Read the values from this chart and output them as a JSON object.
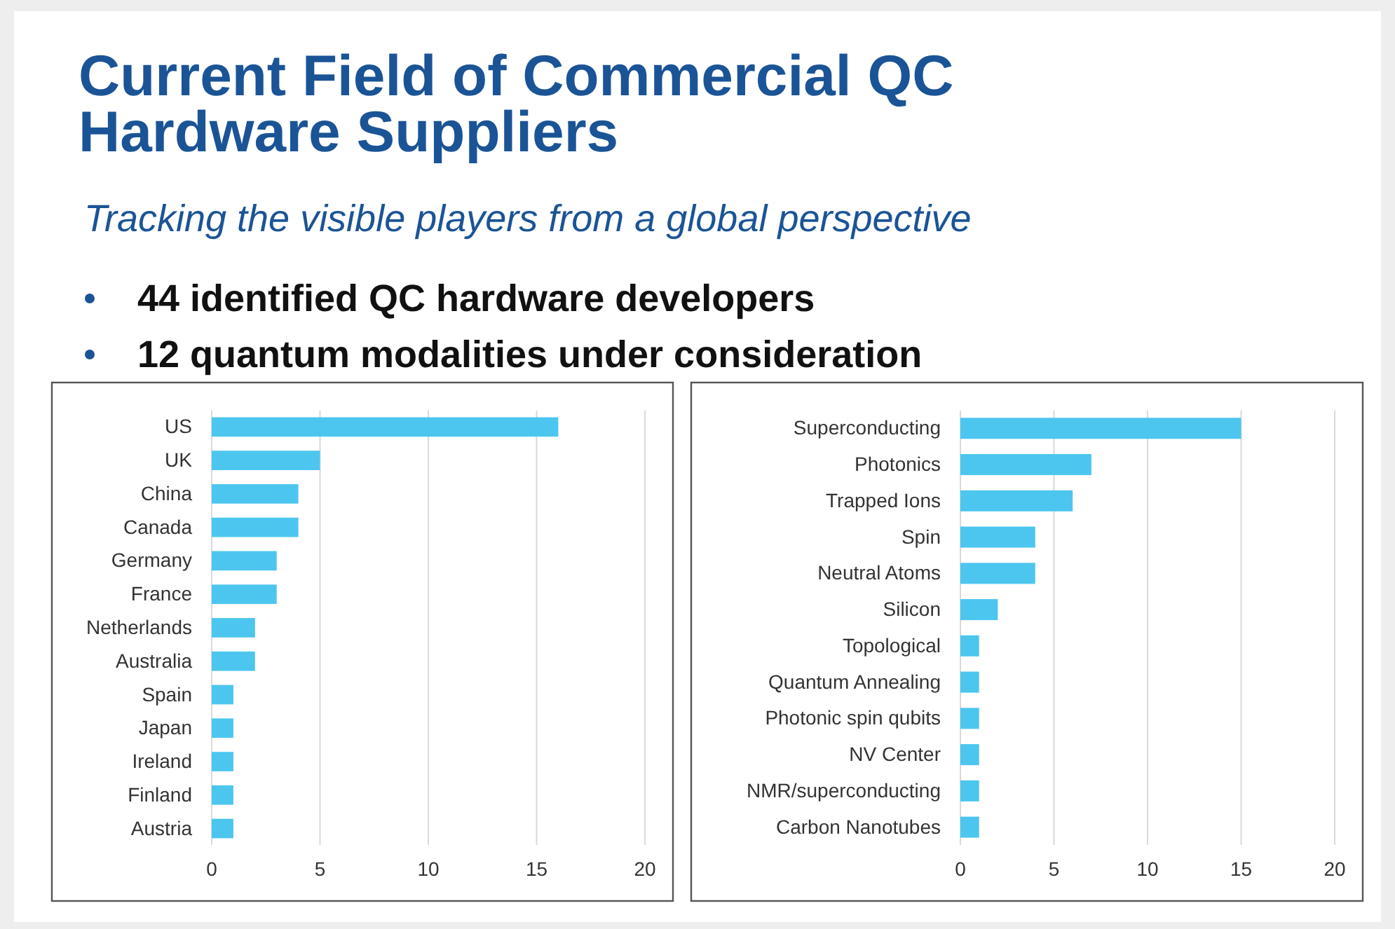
{
  "chart_data": [
    {
      "type": "bar",
      "orientation": "horizontal",
      "title": "Current Field of Commercial QC Hardware Suppliers",
      "subtitle": "Tracking the visible players from a global perspective",
      "annotations": [
        "44 identified QC hardware developers",
        "12 quantum modalities under consideration"
      ],
      "categories": [
        "US",
        "UK",
        "China",
        "Canada",
        "Germany",
        "France",
        "Netherlands",
        "Australia",
        "Spain",
        "Japan",
        "Ireland",
        "Finland",
        "Austria"
      ],
      "values": [
        16,
        5,
        4,
        4,
        3,
        3,
        2,
        2,
        1,
        1,
        1,
        1,
        1
      ],
      "color": "#4cc6ef",
      "xlim": [
        0,
        20
      ],
      "xticks": [
        0,
        5,
        10,
        15,
        20
      ],
      "grid": "x"
    },
    {
      "type": "bar",
      "orientation": "horizontal",
      "categories": [
        "Superconducting",
        "Photonics",
        "Trapped Ions",
        "Spin",
        "Neutral Atoms",
        "Silicon",
        "Topological",
        "Quantum Annealing",
        "Photonic spin qubits",
        "NV Center",
        "NMR/superconducting",
        "Carbon Nanotubes"
      ],
      "values": [
        15,
        7,
        6,
        4,
        4,
        2,
        1,
        1,
        1,
        1,
        1,
        1
      ],
      "color": "#4cc6ef",
      "xlim": [
        0,
        20
      ],
      "xticks": [
        0,
        5,
        10,
        15,
        20
      ],
      "grid": "x"
    }
  ]
}
